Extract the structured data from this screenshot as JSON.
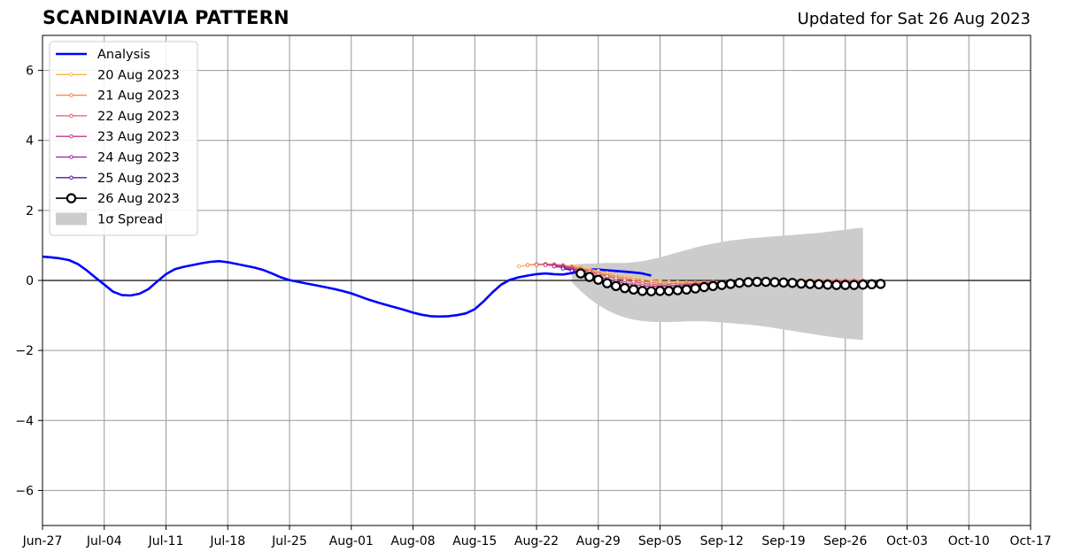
{
  "header": {
    "title": "SCANDINAVIA PATTERN",
    "updated": "Updated for Sat 26 Aug 2023"
  },
  "chart_data": {
    "type": "line",
    "title": "SCANDINAVIA PATTERN",
    "xlabel": "",
    "ylabel": "",
    "xlim": [
      "2023-06-27",
      "2023-10-17"
    ],
    "ylim": [
      -7,
      7
    ],
    "grid": true,
    "legend_position": "top-left",
    "x_tick_labels": [
      "Jun-27",
      "Jul-04",
      "Jul-11",
      "Jul-18",
      "Jul-25",
      "Aug-01",
      "Aug-08",
      "Aug-15",
      "Aug-22",
      "Aug-29",
      "Sep-05",
      "Sep-12",
      "Sep-19",
      "Sep-26",
      "Oct-03",
      "Oct-10",
      "Oct-17"
    ],
    "y_ticks": [
      -6,
      -4,
      -2,
      0,
      2,
      4,
      6
    ],
    "y_tick_labels": [
      "−6",
      "−4",
      "−2",
      "0",
      "2",
      "4",
      "6"
    ],
    "analysis": {
      "name": "Analysis",
      "color": "#0000ff",
      "start": "2023-06-27",
      "values": [
        0.68,
        0.66,
        0.63,
        0.58,
        0.47,
        0.29,
        0.08,
        -0.12,
        -0.32,
        -0.42,
        -0.43,
        -0.38,
        -0.25,
        -0.03,
        0.18,
        0.32,
        0.39,
        0.44,
        0.49,
        0.53,
        0.55,
        0.52,
        0.47,
        0.42,
        0.37,
        0.3,
        0.2,
        0.09,
        0.01,
        -0.04,
        -0.09,
        -0.14,
        -0.19,
        -0.24,
        -0.3,
        -0.37,
        -0.46,
        -0.55,
        -0.63,
        -0.7,
        -0.77,
        -0.84,
        -0.92,
        -0.98,
        -1.02,
        -1.03,
        -1.02,
        -0.99,
        -0.94,
        -0.82,
        -0.6,
        -0.34,
        -0.12,
        0.02,
        0.09,
        0.14,
        0.18,
        0.2,
        0.18,
        0.17,
        0.21,
        0.27,
        0.31,
        0.31,
        0.29,
        0.27,
        0.25,
        0.23,
        0.2,
        0.14
      ]
    },
    "spread": {
      "name": "1σ Spread",
      "color": "#cccccc",
      "start": "2023-08-26",
      "upper": [
        0.45,
        0.47,
        0.48,
        0.49,
        0.5,
        0.5,
        0.5,
        0.52,
        0.55,
        0.6,
        0.66,
        0.73,
        0.8,
        0.87,
        0.94,
        1.0,
        1.05,
        1.1,
        1.14,
        1.17,
        1.2,
        1.22,
        1.24,
        1.26,
        1.28,
        1.3,
        1.32,
        1.34,
        1.36,
        1.39,
        1.42,
        1.45,
        1.48,
        1.51
      ],
      "lower": [
        -0.05,
        -0.3,
        -0.52,
        -0.7,
        -0.85,
        -0.97,
        -1.06,
        -1.12,
        -1.16,
        -1.18,
        -1.19,
        -1.19,
        -1.18,
        -1.17,
        -1.17,
        -1.17,
        -1.18,
        -1.2,
        -1.22,
        -1.24,
        -1.26,
        -1.29,
        -1.32,
        -1.36,
        -1.4,
        -1.44,
        -1.48,
        -1.52,
        -1.56,
        -1.6,
        -1.63,
        -1.66,
        -1.68,
        -1.7
      ]
    },
    "forecasts": [
      {
        "name": "20 Aug 2023",
        "color": "#ffb347",
        "start": "2023-08-20",
        "values": [
          0.4,
          0.44,
          0.46,
          0.47,
          0.46,
          0.44,
          0.41,
          0.37,
          0.32,
          0.27,
          0.21,
          0.16,
          0.11,
          0.07,
          0.03,
          0.0,
          -0.02,
          -0.04,
          -0.05,
          -0.06,
          -0.06,
          -0.06,
          -0.05,
          -0.04,
          -0.03,
          -0.02,
          -0.02,
          -0.02,
          -0.01,
          -0.01,
          0.0,
          0.0,
          0.0,
          0.0,
          0.0,
          0.0,
          0.0,
          0.0,
          0.0,
          0.0
        ]
      },
      {
        "name": "21 Aug 2023",
        "color": "#f4844a",
        "start": "2023-08-21",
        "values": [
          0.44,
          0.46,
          0.47,
          0.46,
          0.43,
          0.39,
          0.34,
          0.28,
          0.22,
          0.16,
          0.11,
          0.06,
          0.02,
          -0.02,
          -0.05,
          -0.07,
          -0.08,
          -0.09,
          -0.09,
          -0.08,
          -0.07,
          -0.05,
          -0.04,
          -0.03,
          -0.02,
          -0.02,
          -0.02,
          -0.02,
          -0.01,
          -0.01,
          0.0,
          0.0,
          0.0,
          0.0,
          0.0,
          0.0,
          0.0,
          0.0,
          0.0
        ]
      },
      {
        "name": "22 Aug 2023",
        "color": "#e05a6e",
        "start": "2023-08-22",
        "values": [
          0.45,
          0.46,
          0.45,
          0.42,
          0.37,
          0.31,
          0.25,
          0.18,
          0.12,
          0.06,
          0.01,
          -0.04,
          -0.08,
          -0.11,
          -0.13,
          -0.14,
          -0.14,
          -0.13,
          -0.11,
          -0.09,
          -0.08,
          -0.06,
          -0.05,
          -0.04,
          -0.04,
          -0.03,
          -0.03,
          -0.03,
          -0.02,
          -0.02,
          -0.02,
          -0.02,
          -0.02,
          -0.02,
          -0.02,
          -0.02,
          -0.02,
          -0.02
        ]
      },
      {
        "name": "23 Aug 2023",
        "color": "#c03a8c",
        "start": "2023-08-23",
        "values": [
          0.44,
          0.43,
          0.4,
          0.34,
          0.27,
          0.19,
          0.11,
          0.04,
          -0.02,
          -0.08,
          -0.12,
          -0.15,
          -0.17,
          -0.17,
          -0.16,
          -0.14,
          -0.12,
          -0.1,
          -0.08,
          -0.07,
          -0.06,
          -0.05,
          -0.05,
          -0.05,
          -0.05,
          -0.05,
          -0.05,
          -0.05,
          -0.05,
          -0.05,
          -0.05,
          -0.05,
          -0.05,
          -0.05,
          -0.05,
          -0.05,
          -0.05
        ]
      },
      {
        "name": "24 Aug 2023",
        "color": "#9a1fa8",
        "start": "2023-08-24",
        "values": [
          0.4,
          0.37,
          0.31,
          0.23,
          0.14,
          0.05,
          -0.04,
          -0.11,
          -0.17,
          -0.22,
          -0.25,
          -0.26,
          -0.25,
          -0.23,
          -0.2,
          -0.17,
          -0.14,
          -0.12,
          -0.1,
          -0.09,
          -0.08,
          -0.07,
          -0.07,
          -0.07,
          -0.07,
          -0.07,
          -0.07,
          -0.07,
          -0.07,
          -0.07,
          -0.07,
          -0.07,
          -0.07,
          -0.07,
          -0.07,
          -0.07
        ]
      },
      {
        "name": "25 Aug 2023",
        "color": "#5a1a9a",
        "start": "2023-08-25",
        "values": [
          0.34,
          0.28,
          0.19,
          0.09,
          -0.01,
          -0.1,
          -0.18,
          -0.24,
          -0.28,
          -0.3,
          -0.29,
          -0.27,
          -0.24,
          -0.2,
          -0.17,
          -0.14,
          -0.12,
          -0.1,
          -0.09,
          -0.08,
          -0.08,
          -0.08,
          -0.08,
          -0.08,
          -0.09,
          -0.09,
          -0.09,
          -0.1,
          -0.1,
          -0.1,
          -0.1,
          -0.1,
          -0.1,
          -0.1,
          -0.1
        ]
      }
    ],
    "latest": {
      "name": "26 Aug 2023",
      "color": "#000000",
      "start": "2023-08-27",
      "values": [
        0.2,
        0.1,
        0.02,
        -0.08,
        -0.16,
        -0.22,
        -0.26,
        -0.3,
        -0.31,
        -0.3,
        -0.3,
        -0.28,
        -0.26,
        -0.23,
        -0.19,
        -0.16,
        -0.13,
        -0.1,
        -0.07,
        -0.05,
        -0.04,
        -0.04,
        -0.05,
        -0.06,
        -0.07,
        -0.09,
        -0.1,
        -0.11,
        -0.12,
        -0.13,
        -0.13,
        -0.13,
        -0.12,
        -0.11,
        -0.1
      ]
    }
  }
}
